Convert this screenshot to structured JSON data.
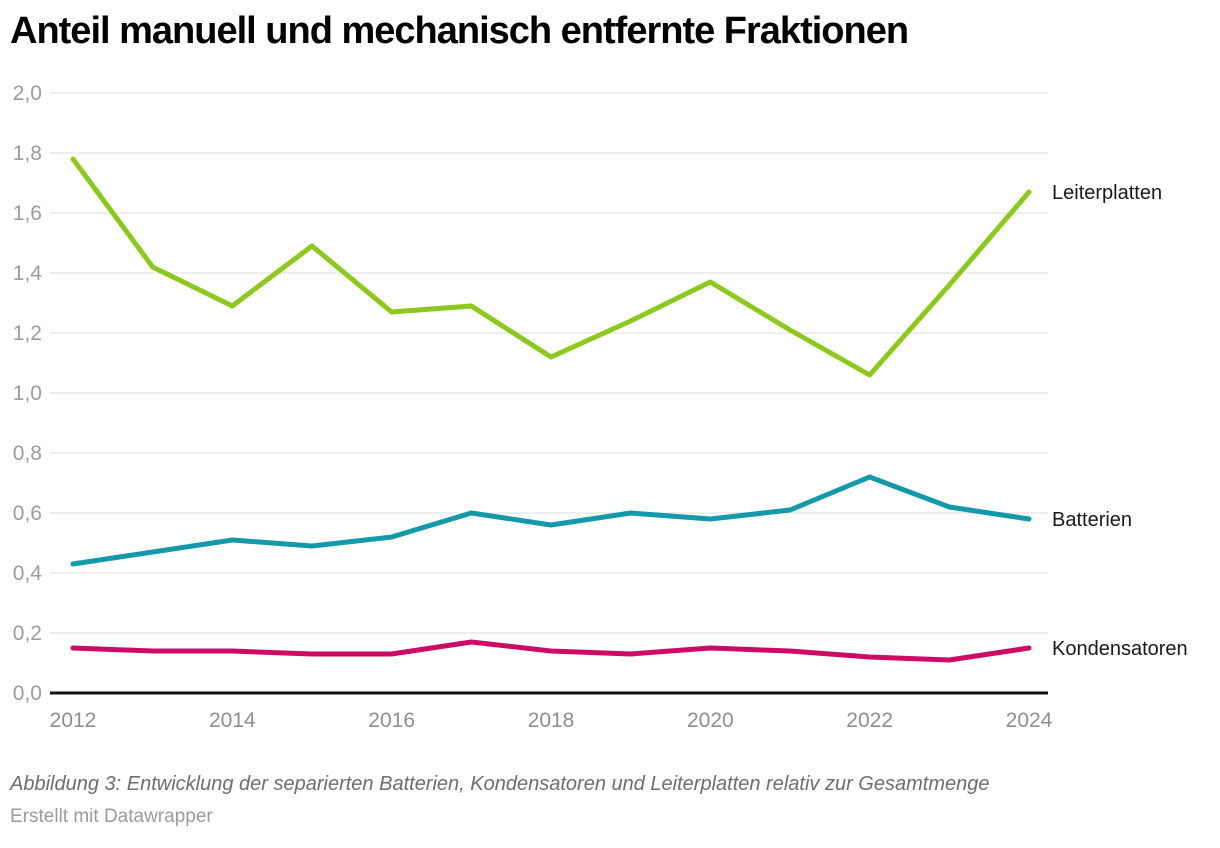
{
  "title": "Anteil manuell und mechanisch entfernte Fraktionen",
  "footer": {
    "caption": "Abbildung 3: Entwicklung der separierten Batterien, Kondensatoren und Leiterplatten relativ zur Gesamtmenge",
    "credit": "Erstellt mit Datawrapper"
  },
  "colors": {
    "background": "#ffffff",
    "axis": "#111111",
    "grid": "#e8e8e8",
    "y_tick_label": "#9c9c9c",
    "x_tick_label": "#8f8f8f",
    "series_label": "#1a1a1a",
    "title": "#000000"
  },
  "chart_data": {
    "type": "line",
    "title": "Anteil manuell und mechanisch entfernte Fraktionen",
    "xlabel": "",
    "ylabel": "",
    "x": [
      2012,
      2013,
      2014,
      2015,
      2016,
      2017,
      2018,
      2019,
      2020,
      2021,
      2022,
      2023,
      2024
    ],
    "series": [
      {
        "name": "Leiterplatten",
        "color": "#8cc81e",
        "values": [
          1.78,
          1.42,
          1.29,
          1.49,
          1.27,
          1.29,
          1.12,
          1.24,
          1.37,
          1.21,
          1.06,
          1.36,
          1.67
        ]
      },
      {
        "name": "Batterien",
        "color": "#1399a9",
        "values": [
          0.43,
          0.47,
          0.51,
          0.49,
          0.52,
          0.6,
          0.56,
          0.6,
          0.58,
          0.61,
          0.72,
          0.62,
          0.58
        ]
      },
      {
        "name": "Kondensatoren",
        "color": "#ce0a67",
        "values": [
          0.15,
          0.14,
          0.14,
          0.13,
          0.13,
          0.17,
          0.14,
          0.13,
          0.15,
          0.14,
          0.12,
          0.11,
          0.15
        ]
      }
    ],
    "ylim": [
      0.0,
      2.0
    ],
    "xlim": [
      2012,
      2024
    ],
    "grid": "horizontal",
    "legend_position": "direct labels right of line ends",
    "y_ticks": [
      {
        "value": 2.0,
        "label": "2,0"
      },
      {
        "value": 1.8,
        "label": "1,8"
      },
      {
        "value": 1.6,
        "label": "1,6"
      },
      {
        "value": 1.4,
        "label": "1,4"
      },
      {
        "value": 1.2,
        "label": "1,2"
      },
      {
        "value": 1.0,
        "label": "1,0"
      },
      {
        "value": 0.8,
        "label": "0,8"
      },
      {
        "value": 0.6,
        "label": "0,6"
      },
      {
        "value": 0.4,
        "label": "0,4"
      },
      {
        "value": 0.2,
        "label": "0,2"
      },
      {
        "value": 0.0,
        "label": "0,0"
      }
    ],
    "x_ticks": [
      {
        "value": 2012,
        "label": "2012"
      },
      {
        "value": 2014,
        "label": "2014"
      },
      {
        "value": 2016,
        "label": "2016"
      },
      {
        "value": 2018,
        "label": "2018"
      },
      {
        "value": 2020,
        "label": "2020"
      },
      {
        "value": 2022,
        "label": "2022"
      },
      {
        "value": 2024,
        "label": "2024"
      }
    ]
  }
}
